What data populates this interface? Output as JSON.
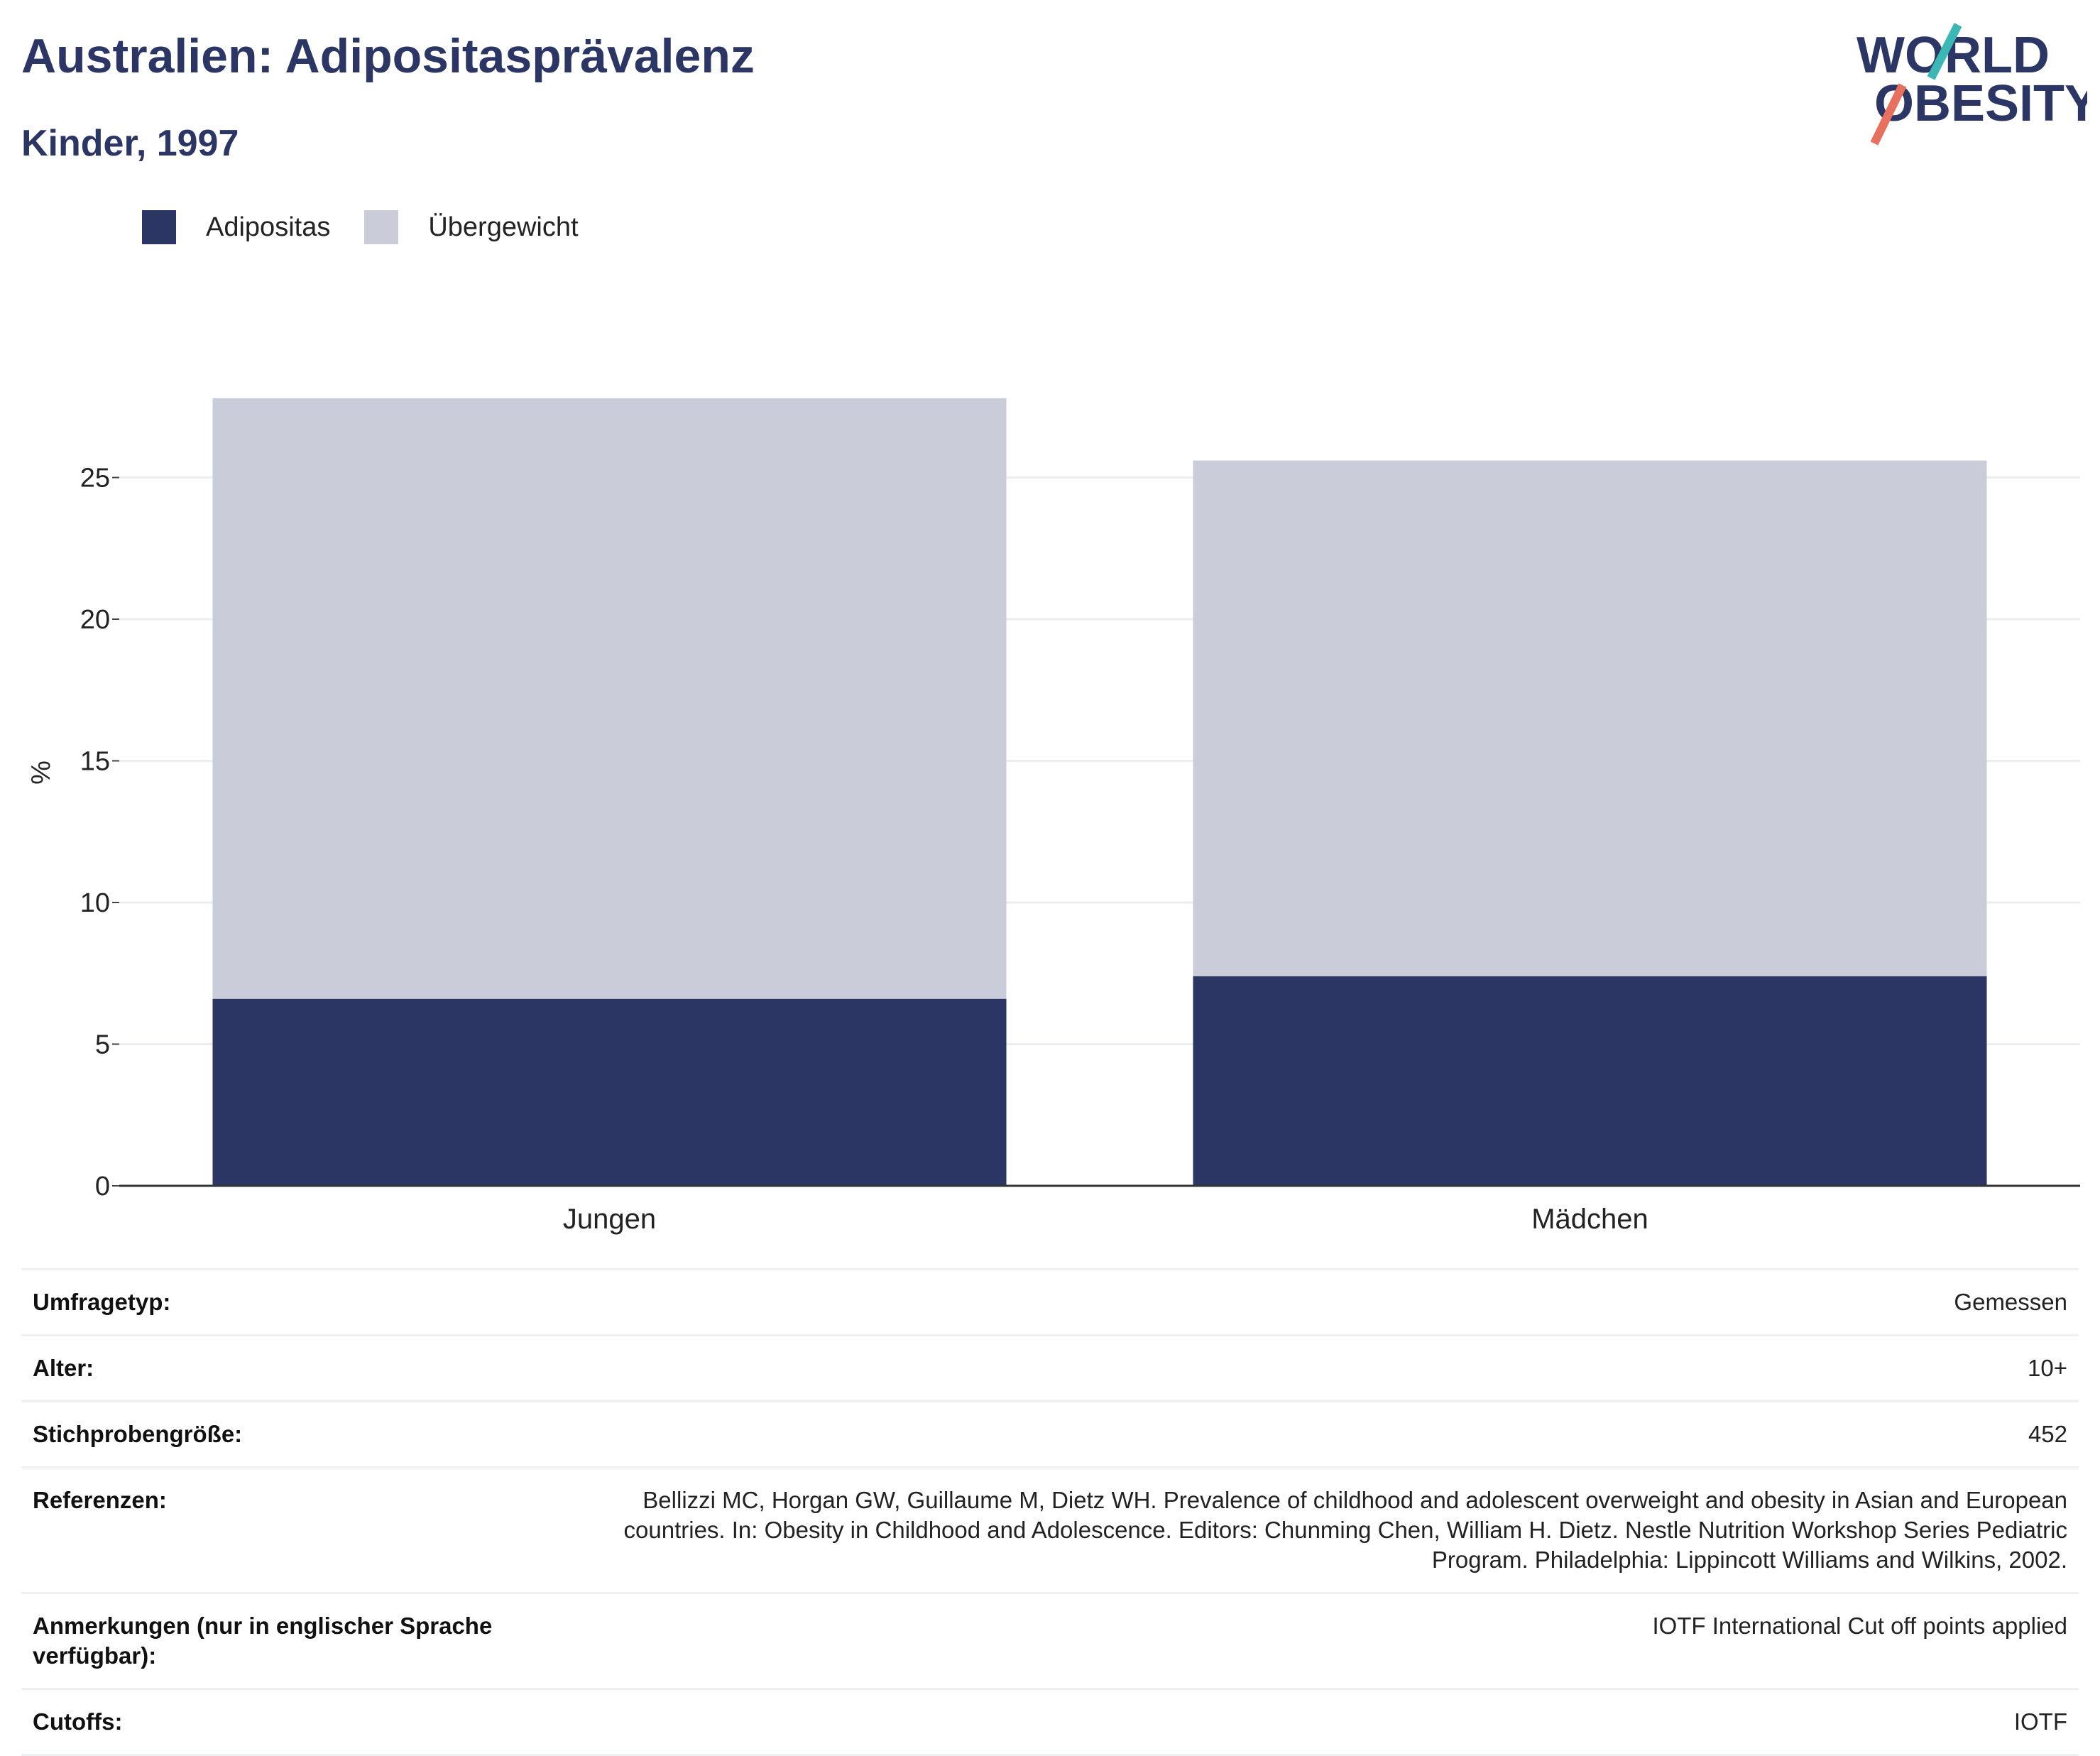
{
  "header": {
    "title": "Australien: Adipositasprävalenz",
    "subtitle": "Kinder, 1997"
  },
  "logo": {
    "line1": "WORLD",
    "line2": "OBESITY"
  },
  "colors": {
    "adipositas": "#2b3664",
    "uebergewicht": "#cacdd9",
    "heading": "#2b3664",
    "logo_teal": "#3bb8b6",
    "logo_coral": "#e8705f"
  },
  "chart_data": {
    "type": "bar",
    "stacked": true,
    "categories": [
      "Jungen",
      "Mädchen"
    ],
    "series": [
      {
        "name": "Adipositas",
        "values": [
          6.6,
          7.4
        ],
        "color": "#2b3664"
      },
      {
        "name": "Übergewicht",
        "values": [
          21.2,
          18.2
        ],
        "color": "#cacdd9"
      }
    ],
    "ylabel": "%",
    "xlabel": "",
    "ylim": [
      0,
      29
    ],
    "yticks": [
      0,
      5,
      10,
      15,
      20,
      25
    ],
    "grid": true,
    "legend_position": "top-left"
  },
  "info": [
    {
      "key": "Umfragetyp:",
      "value": "Gemessen"
    },
    {
      "key": "Alter:",
      "value": "10+"
    },
    {
      "key": "Stichprobengröße:",
      "value": "452"
    },
    {
      "key": "Referenzen:",
      "value": "Bellizzi MC, Horgan GW, Guillaume M, Dietz WH. Prevalence of childhood and adolescent overweight and obesity in Asian and European countries. In: Obesity in Childhood and Adolescence. Editors: Chunming Chen, William H. Dietz. Nestle Nutrition Workshop Series Pediatric Program. Philadelphia: Lippincott Williams and Wilkins, 2002."
    },
    {
      "key": "Anmerkungen (nur in englischer Sprache verfügbar):",
      "value": "IOTF International Cut off points applied"
    },
    {
      "key": "Cutoffs:",
      "value": "IOTF"
    }
  ]
}
